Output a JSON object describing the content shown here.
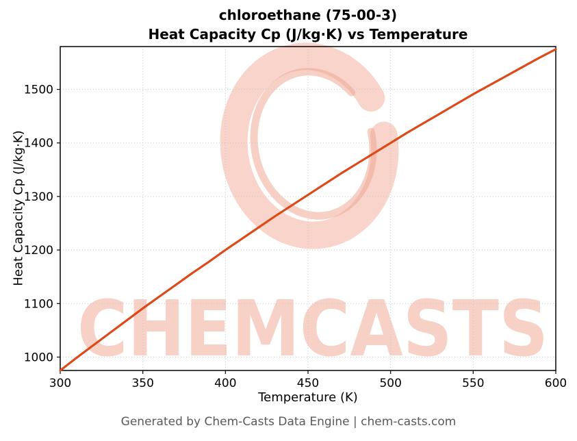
{
  "page": {
    "title_line1": "chloroethane (75-00-3)",
    "title_line2": "Heat Capacity Cp (J/kg·K) vs Temperature",
    "footer": "Generated by Chem-Casts Data Engine | chem-casts.com"
  },
  "watermark": {
    "text": "CHEMCASTS",
    "text_color": "#f7ccc0",
    "ring_color": "#f2b19e",
    "ring_inner_color": "#eda28c"
  },
  "chart_data": {
    "type": "line",
    "title": "chloroethane (75-00-3)\nHeat Capacity Cp (J/kg·K) vs Temperature",
    "xlabel": "Temperature (K)",
    "ylabel": "Heat Capacity Cp (J/kg·K)",
    "xlim": [
      300,
      600
    ],
    "ylim": [
      975,
      1580
    ],
    "xticks": [
      300,
      350,
      400,
      450,
      500,
      550,
      600
    ],
    "yticks": [
      1000,
      1100,
      1200,
      1300,
      1400,
      1500
    ],
    "grid": true,
    "grid_style": "dotted",
    "grid_color": "#c8c8c8",
    "line_color": "#dc4a1a",
    "line_width": 3.2,
    "legend": "none",
    "series": [
      {
        "name": "Heat Capacity Cp",
        "x": [
          300,
          310,
          320,
          330,
          340,
          350,
          360,
          370,
          380,
          390,
          400,
          410,
          420,
          430,
          440,
          450,
          460,
          470,
          480,
          490,
          500,
          510,
          520,
          530,
          540,
          550,
          560,
          570,
          580,
          590,
          600
        ],
        "values": [
          975,
          999,
          1022,
          1045,
          1068,
          1091,
          1113,
          1135,
          1157,
          1178,
          1200,
          1221,
          1242,
          1263,
          1283,
          1303,
          1323,
          1343,
          1362,
          1381,
          1400,
          1419,
          1437,
          1455,
          1473,
          1491,
          1508,
          1525,
          1542,
          1559,
          1575
        ]
      }
    ]
  }
}
